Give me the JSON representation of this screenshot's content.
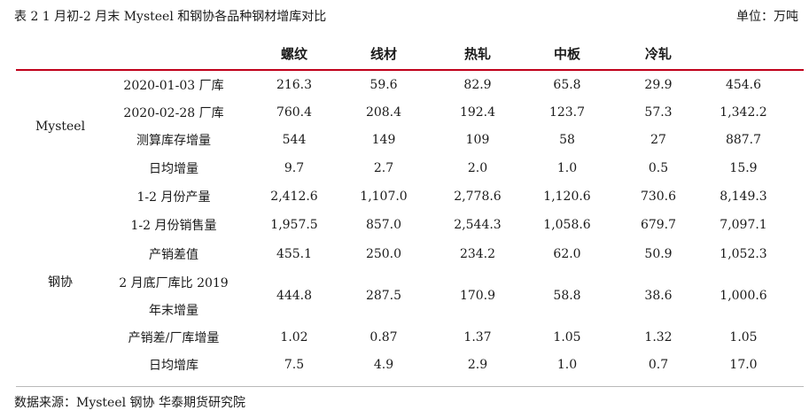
{
  "caption": "表 2   1 月初-2 月末 Mysteel 和钢协各品种钢材增库对比",
  "unit": "单位：万吨",
  "columns": [
    "螺纹",
    "线材",
    "热轧",
    "中板",
    "冷轧",
    ""
  ],
  "groups": {
    "mysteel": "Mysteel",
    "cisa": "钢协"
  },
  "rows": [
    {
      "label": "2020-01-03 厂库",
      "values": [
        "216.3",
        "59.6",
        "82.9",
        "65.8",
        "29.9",
        "454.6"
      ]
    },
    {
      "label": "2020-02-28 厂库",
      "values": [
        "760.4",
        "208.4",
        "192.4",
        "123.7",
        "57.3",
        "1,342.2"
      ]
    },
    {
      "label": "测算库存增量",
      "values": [
        "544",
        "149",
        "109",
        "58",
        "27",
        "887.7"
      ]
    },
    {
      "label": "日均增量",
      "values": [
        "9.7",
        "2.7",
        "2.0",
        "1.0",
        "0.5",
        "15.9"
      ]
    },
    {
      "label": "1-2 月份产量",
      "values": [
        "2,412.6",
        "1,107.0",
        "2,778.6",
        "1,120.6",
        "730.6",
        "8,149.3"
      ]
    },
    {
      "label": "1-2 月份销售量",
      "values": [
        "1,957.5",
        "857.0",
        "2,544.3",
        "1,058.6",
        "679.7",
        "7,097.1"
      ]
    },
    {
      "label": "产销差值",
      "values": [
        "455.1",
        "250.0",
        "234.2",
        "62.0",
        "50.9",
        "1,052.3"
      ]
    },
    {
      "label_line1": "2 月底厂库比 2019",
      "label_line2": "年末增量",
      "values": [
        "444.8",
        "287.5",
        "170.9",
        "58.8",
        "38.6",
        "1,000.6"
      ]
    },
    {
      "label": "产销差/厂库增量",
      "values": [
        "1.02",
        "0.87",
        "1.37",
        "1.05",
        "1.32",
        "1.05"
      ]
    },
    {
      "label": "日均增库",
      "values": [
        "7.5",
        "4.9",
        "2.9",
        "1.0",
        "0.7",
        "17.0"
      ]
    }
  ],
  "source": "数据来源：Mysteel  钢协  华泰期货研究院",
  "colors": {
    "rule": "#c0001a",
    "text": "#1a1a1a"
  }
}
